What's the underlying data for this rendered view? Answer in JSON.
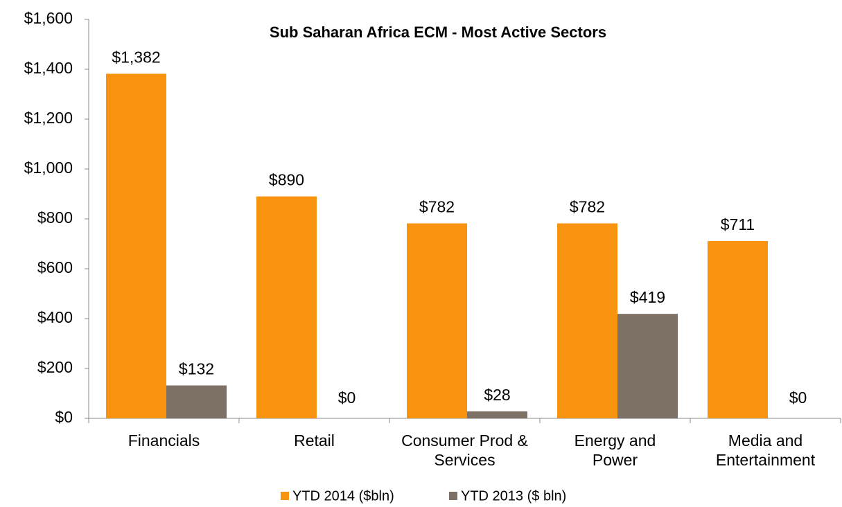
{
  "chart_data": {
    "type": "bar",
    "title": "Sub Saharan Africa ECM - Most Active Sectors",
    "categories": [
      "Financials",
      "Retail",
      "Consumer Prod &\nServices",
      "Energy and\nPower",
      "Media and\nEntertainment"
    ],
    "series": [
      {
        "name": "YTD 2014 ($bln)",
        "color": "#f7930f",
        "values": [
          1382,
          890,
          782,
          782,
          711
        ],
        "value_labels": [
          "$1,382",
          "$890",
          "$782",
          "$782",
          "$711"
        ]
      },
      {
        "name": "YTD 2013 ($ bln)",
        "color": "#7d7166",
        "values": [
          132,
          0,
          28,
          419,
          0
        ],
        "value_labels": [
          "$132",
          "$0",
          "$28",
          "$419",
          "$0"
        ]
      }
    ],
    "ylim": [
      0,
      1600
    ],
    "yticks": [
      {
        "value": 0,
        "label": "$0"
      },
      {
        "value": 200,
        "label": "$200"
      },
      {
        "value": 400,
        "label": "$400"
      },
      {
        "value": 600,
        "label": "$600"
      },
      {
        "value": 800,
        "label": "$800"
      },
      {
        "value": 1000,
        "label": "$1,000"
      },
      {
        "value": 1200,
        "label": "$1,200"
      },
      {
        "value": 1400,
        "label": "$1,400"
      },
      {
        "value": 1600,
        "label": "$1,600"
      }
    ],
    "grid": false,
    "legend": "bottom"
  }
}
